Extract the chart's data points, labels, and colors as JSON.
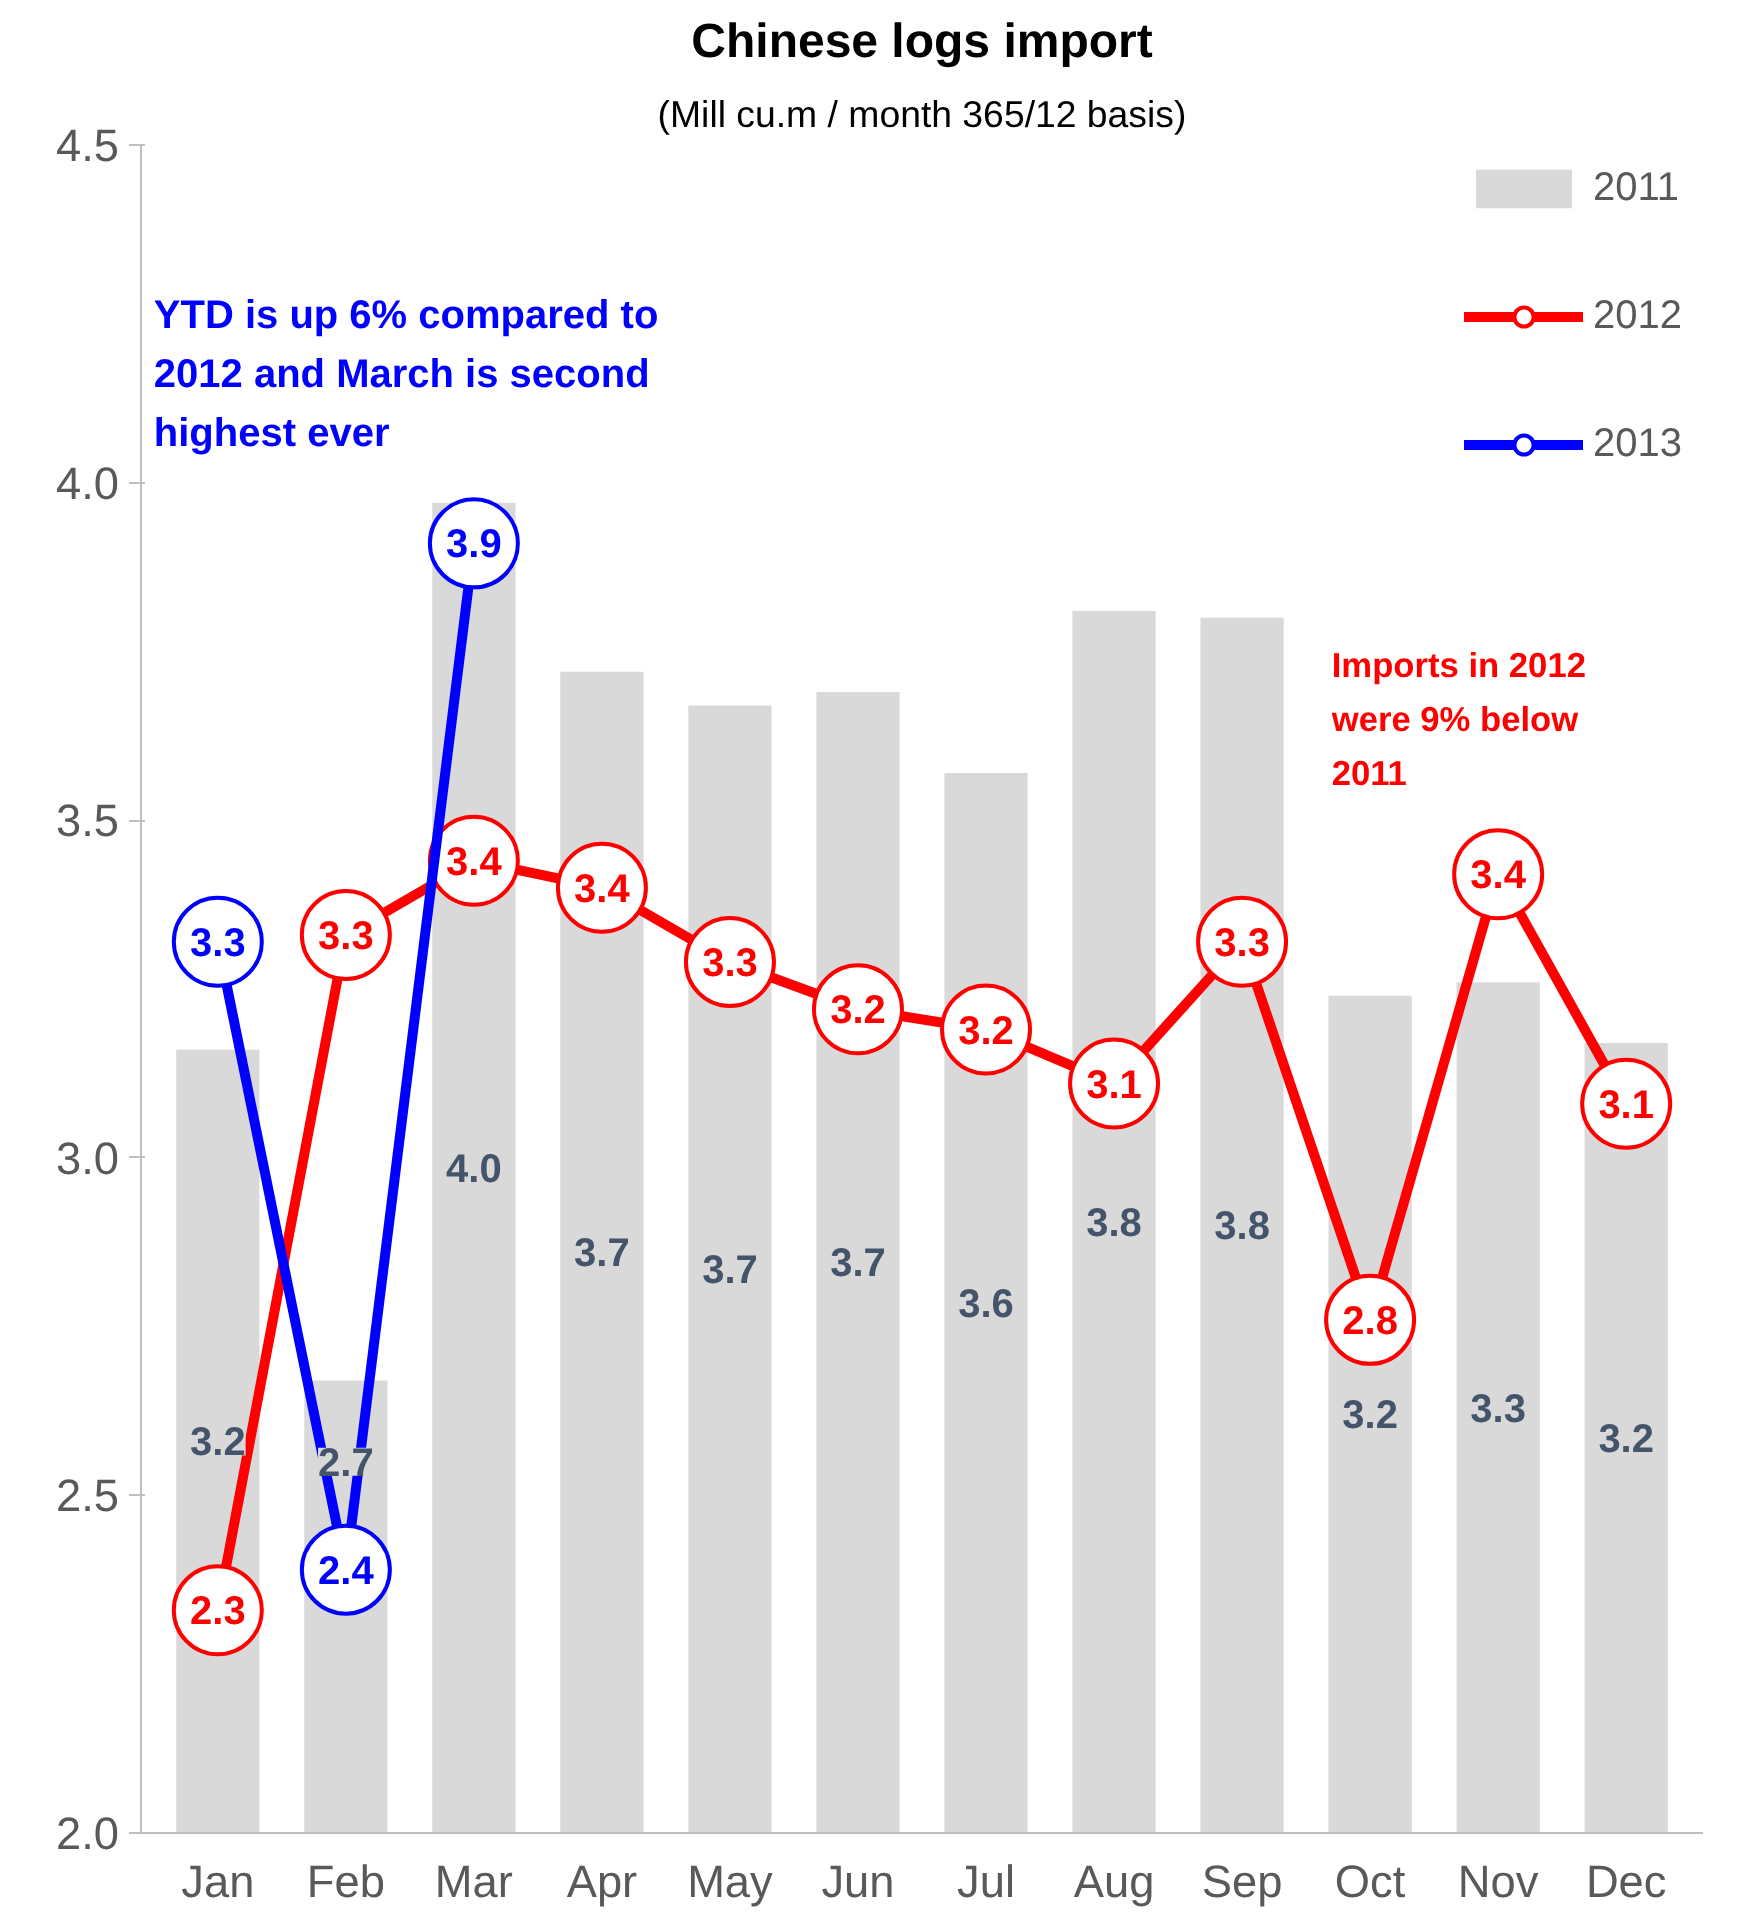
{
  "chart_data": {
    "type": "bar",
    "title": "Chinese logs import",
    "subtitle": "(Mill cu.m / month 365/12 basis)",
    "categories": [
      "Jan",
      "Feb",
      "Mar",
      "Apr",
      "May",
      "Jun",
      "Jul",
      "Aug",
      "Sep",
      "Oct",
      "Nov",
      "Dec"
    ],
    "series": [
      {
        "name": "2011",
        "color": "#d9d9d9",
        "values": [
          3.16,
          2.67,
          3.97,
          3.72,
          3.67,
          3.69,
          3.57,
          3.81,
          3.8,
          3.24,
          3.26,
          3.17
        ],
        "value_labels": [
          "3.2",
          "2.7",
          "4.0",
          "3.7",
          "3.7",
          "3.7",
          "3.6",
          "3.8",
          "3.8",
          "3.2",
          "3.3",
          "3.2"
        ]
      },
      {
        "name": "2012",
        "type": "line",
        "color": "#ff0000",
        "values": [
          2.33,
          3.33,
          3.44,
          3.4,
          3.29,
          3.22,
          3.19,
          3.11,
          3.32,
          2.76,
          3.42,
          3.08
        ],
        "value_labels": [
          "2.3",
          "3.3",
          "3.4",
          "3.4",
          "3.3",
          "3.2",
          "3.2",
          "3.1",
          "3.3",
          "2.8",
          "3.4",
          "3.1"
        ]
      },
      {
        "name": "2013",
        "type": "line",
        "color": "#0000ff",
        "values": [
          3.32,
          2.39,
          3.91,
          null,
          null,
          null,
          null,
          null,
          null,
          null,
          null,
          null
        ],
        "value_labels": [
          "3.3",
          "2.4",
          "3.9",
          null,
          null,
          null,
          null,
          null,
          null,
          null,
          null,
          null
        ]
      }
    ],
    "annotations": [
      "YTD is up 6% compared to 2012 and March is second highest ever",
      "Imports in 2012 were 9% below 2011"
    ],
    "ylim": [
      2.0,
      4.5
    ],
    "yticks": [
      {
        "value": 2.0,
        "label": "2.0"
      },
      {
        "value": 2.5,
        "label": "2.5"
      },
      {
        "value": 3.0,
        "label": "3.0"
      },
      {
        "value": 3.5,
        "label": "3.5"
      },
      {
        "value": 4.0,
        "label": "4.0"
      },
      {
        "value": 4.5,
        "label": "4.5"
      }
    ],
    "grid": false,
    "legend": "top right",
    "marker": "circle",
    "line_style": "solid"
  }
}
